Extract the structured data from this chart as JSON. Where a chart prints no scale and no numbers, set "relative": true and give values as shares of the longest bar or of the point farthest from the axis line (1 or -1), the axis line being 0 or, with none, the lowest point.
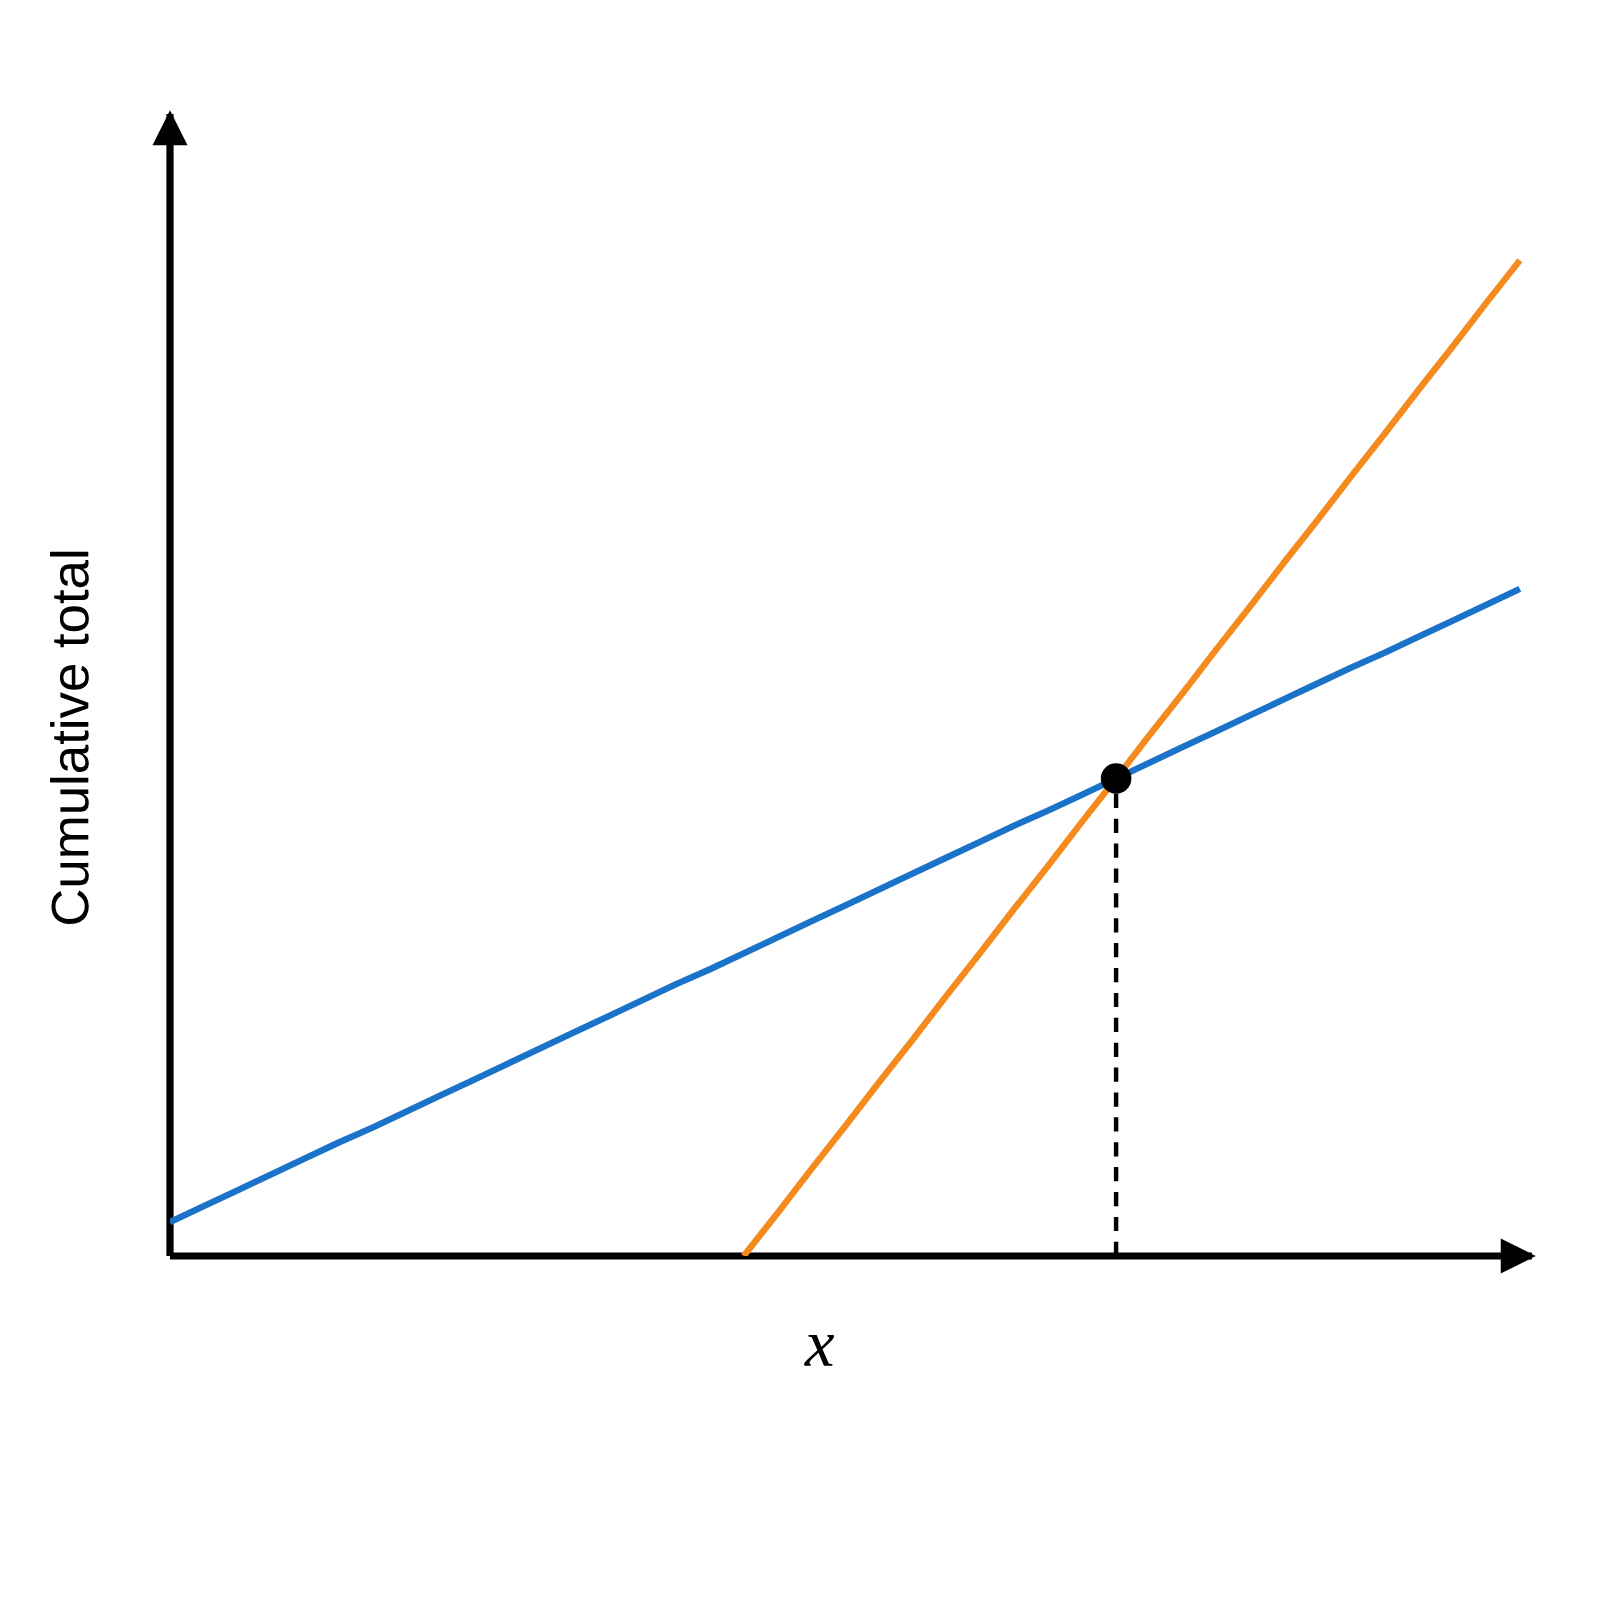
{
  "chart_data": {
    "type": "line",
    "xlabel": "x",
    "ylabel": "Cumulative total",
    "relative": true,
    "categories": [
      null,
      null,
      null,
      null,
      null,
      null,
      null,
      null,
      null,
      null,
      null,
      null,
      null,
      null,
      null,
      null,
      null,
      null,
      null,
      null,
      null,
      null,
      null,
      null,
      null,
      null,
      null,
      null,
      null,
      null,
      null,
      null,
      null,
      null,
      null,
      null,
      null,
      null,
      null,
      null,
      null
    ],
    "series": [
      {
        "color": "#1a73c9",
        "values": [
          0.034,
          0.05,
          0.066,
          0.082,
          0.098,
          0.114,
          0.129,
          0.145,
          0.161,
          0.177,
          0.193,
          0.209,
          0.225,
          0.241,
          0.257,
          0.273,
          0.288,
          0.304,
          0.32,
          0.336,
          0.352,
          0.368,
          0.384,
          0.4,
          0.416,
          0.432,
          0.447,
          0.463,
          0.479,
          0.495,
          0.511,
          0.527,
          0.543,
          0.559,
          0.575,
          0.591,
          0.606,
          0.622,
          0.638,
          0.654,
          0.67
        ]
      },
      {
        "color": "#f58a1f",
        "values": [
          null,
          null,
          null,
          null,
          null,
          null,
          null,
          null,
          null,
          null,
          null,
          null,
          null,
          null,
          null,
          null,
          null,
          0,
          0.043,
          0.087,
          0.13,
          0.174,
          0.217,
          0.261,
          0.304,
          0.348,
          0.391,
          0.435,
          0.478,
          0.522,
          0.565,
          0.609,
          0.652,
          0.696,
          0.739,
          0.783,
          0.826,
          0.87,
          0.913,
          0.957,
          1
        ]
      }
    ]
  }
}
